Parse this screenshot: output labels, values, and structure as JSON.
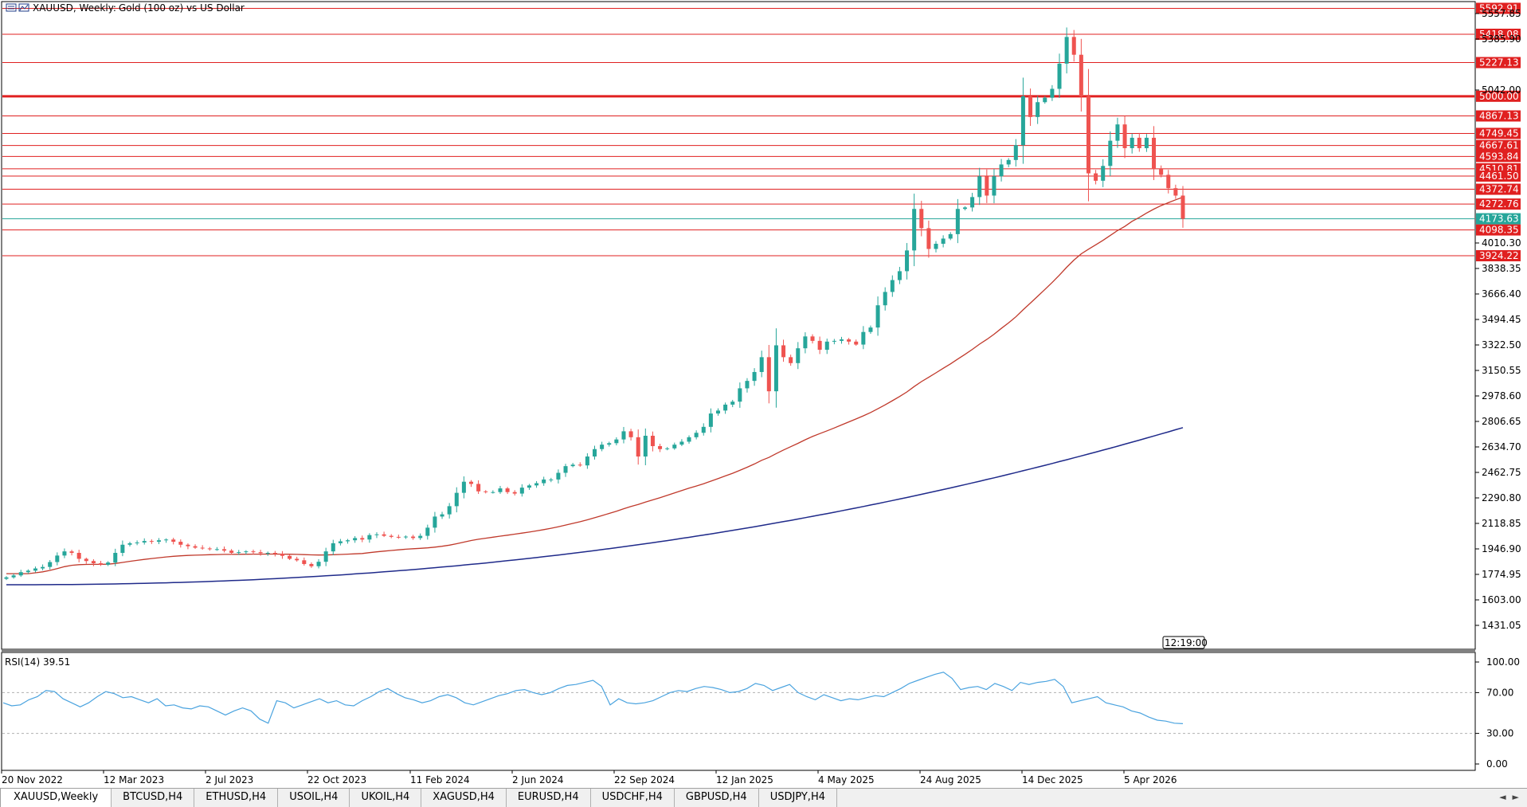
{
  "chart_info": {
    "symbol_timeframe": "XAUUSD, Weekly:",
    "description": "Gold (100 oz) vs US Dollar",
    "time_marker": "12:19:00"
  },
  "colors": {
    "bull": "#26a69a",
    "bear": "#ef5350",
    "level_line": "#e02020",
    "ma_short": "#c0392b",
    "ma_long": "#1f2a8a",
    "rsi_line": "#4aa3df",
    "current_price": "#26a69a"
  },
  "price_axis": {
    "ticks": [
      "5557.85",
      "5385.90",
      "5042.00",
      "4010.30",
      "3838.35",
      "3666.40",
      "3494.45",
      "3322.50",
      "3150.55",
      "2978.60",
      "2806.65",
      "2634.70",
      "2462.75",
      "2290.80",
      "2118.85",
      "1946.90",
      "1774.95",
      "1603.00",
      "1431.05"
    ],
    "visible_min": 1350,
    "visible_max": 5640
  },
  "levels": [
    {
      "value": 5592.91,
      "label": "5592.91",
      "thick": false
    },
    {
      "value": 5418.08,
      "label": "5418.08",
      "thick": false
    },
    {
      "value": 5227.13,
      "label": "5227.13",
      "thick": false
    },
    {
      "value": 5000.0,
      "label": "5000.00",
      "thick": true
    },
    {
      "value": 4867.13,
      "label": "4867.13",
      "thick": false
    },
    {
      "value": 4749.45,
      "label": "4749.45",
      "thick": false
    },
    {
      "value": 4667.61,
      "label": "4667.61",
      "thick": false
    },
    {
      "value": 4593.84,
      "label": "4593.84",
      "thick": false
    },
    {
      "value": 4510.81,
      "label": "4510.81",
      "thick": false
    },
    {
      "value": 4461.5,
      "label": "4461.50",
      "thick": false
    },
    {
      "value": 4372.74,
      "label": "4372.74",
      "thick": false
    },
    {
      "value": 4272.76,
      "label": "4272.76",
      "thick": false
    },
    {
      "value": 4098.35,
      "label": "4098.35",
      "thick": false
    },
    {
      "value": 3924.22,
      "label": "3924.22",
      "thick": false
    }
  ],
  "current_price": {
    "value": 4173.63,
    "label": "4173.63"
  },
  "rsi": {
    "label": "RSI(14) 39.51",
    "ticks": [
      "100.00",
      "70.00",
      "30.00",
      "0.00"
    ],
    "values": [
      60,
      57,
      58,
      63,
      66,
      72,
      71,
      64,
      60,
      56,
      60,
      66,
      71,
      69,
      65,
      66,
      63,
      60,
      64,
      57,
      58,
      55,
      54,
      57,
      56,
      52,
      48,
      52,
      55,
      52,
      44,
      40,
      62,
      60,
      55,
      58,
      61,
      64,
      60,
      62,
      58,
      57,
      62,
      66,
      71,
      74,
      69,
      65,
      63,
      60,
      62,
      66,
      68,
      65,
      60,
      58,
      61,
      64,
      67,
      69,
      72,
      73,
      70,
      68,
      70,
      74,
      77,
      78,
      80,
      82,
      76,
      58,
      64,
      60,
      59,
      60,
      62,
      66,
      70,
      72,
      71,
      74,
      76,
      75,
      73,
      70,
      71,
      74,
      79,
      77,
      72,
      75,
      78,
      70,
      66,
      63,
      68,
      65,
      62,
      64,
      63,
      65,
      67,
      66,
      70,
      74,
      79,
      82,
      85,
      88,
      90,
      84,
      73,
      75,
      76,
      73,
      79,
      76,
      72,
      80,
      78,
      80,
      81,
      83,
      76,
      60,
      62,
      64,
      66,
      60,
      58,
      56,
      52,
      50,
      46,
      43,
      42,
      40,
      39.51
    ]
  },
  "x_axis": {
    "labels": [
      "20 Nov 2022",
      "12 Mar 2023",
      "2 Jul 2023",
      "22 Oct 2023",
      "11 Feb 2024",
      "2 Jun 2024",
      "22 Sep 2024",
      "12 Jan 2025",
      "4 May 2025",
      "24 Aug 2025",
      "14 Dec 2025",
      "5 Apr 2026"
    ]
  },
  "tabs": [
    "XAUUSD,Weekly",
    "BTCUSD,H4",
    "ETHUSD,H4",
    "USOIL,H4",
    "UKOIL,H4",
    "XAGUSD,H4",
    "EURUSD,H4",
    "USDCHF,H4",
    "GBPUSD,H4",
    "USDJPY,H4"
  ],
  "chart_data": {
    "type": "candlestick",
    "title": "XAUUSD, Weekly: Gold (100 oz) vs US Dollar",
    "ylim": [
      1350,
      5640
    ],
    "closes": [
      1755,
      1768,
      1790,
      1800,
      1815,
      1825,
      1858,
      1902,
      1930,
      1920,
      1880,
      1865,
      1850,
      1840,
      1855,
      1920,
      1975,
      1985,
      1990,
      2000,
      1995,
      2005,
      2010,
      1995,
      1975,
      1965,
      1955,
      1950,
      1945,
      1945,
      1935,
      1920,
      1925,
      1930,
      1925,
      1918,
      1920,
      1915,
      1900,
      1880,
      1870,
      1845,
      1830,
      1860,
      1930,
      1985,
      1998,
      2005,
      2020,
      2010,
      2040,
      2045,
      2035,
      2028,
      2025,
      2030,
      2020,
      2035,
      2090,
      2165,
      2180,
      2235,
      2325,
      2400,
      2385,
      2335,
      2330,
      2330,
      2355,
      2330,
      2320,
      2360,
      2375,
      2390,
      2415,
      2415,
      2460,
      2505,
      2515,
      2510,
      2570,
      2620,
      2650,
      2660,
      2685,
      2740,
      2700,
      2570,
      2710,
      2640,
      2620,
      2625,
      2650,
      2670,
      2700,
      2730,
      2770,
      2860,
      2880,
      2920,
      2940,
      3030,
      3080,
      3140,
      3240,
      3010,
      3320,
      3240,
      3200,
      3300,
      3380,
      3350,
      3290,
      3345,
      3350,
      3360,
      3345,
      3325,
      3410,
      3440,
      3590,
      3680,
      3760,
      3820,
      3960,
      4240,
      4110,
      3970,
      4005,
      4040,
      4070,
      4240,
      4250,
      4320,
      4460,
      4330,
      4460,
      4540,
      4570,
      4670,
      5000,
      4860,
      4960,
      4990,
      5050,
      5220,
      5400,
      5280,
      5000,
      4480,
      4430,
      4530,
      4700,
      4810,
      4650,
      4720,
      4650,
      4720,
      4510,
      4470,
      4380,
      4330,
      4173.63
    ],
    "ma_short_endpoint": 4120,
    "ma_long_endpoint": 2765
  }
}
